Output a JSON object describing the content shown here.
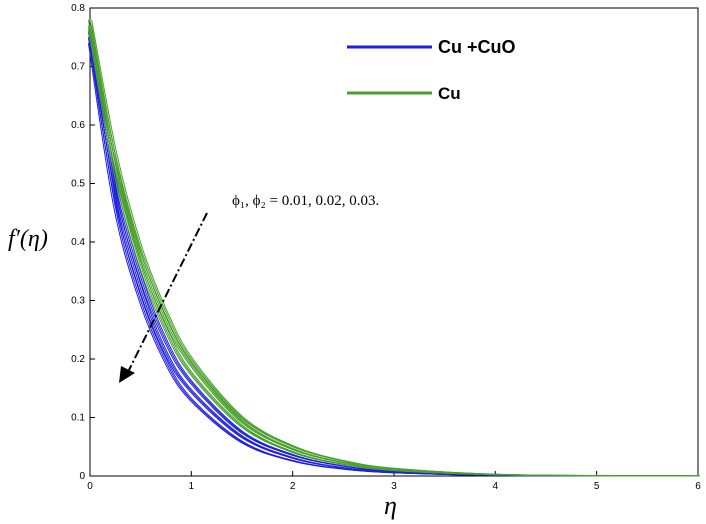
{
  "chart_data": {
    "type": "line",
    "xlabel": "η",
    "ylabel": "f′(η)",
    "xlim": [
      0,
      6
    ],
    "ylim": [
      0,
      0.8
    ],
    "xticks": [
      "0",
      "1",
      "2",
      "3",
      "4",
      "5",
      "6"
    ],
    "yticks": [
      "0",
      "0.1",
      "0.2",
      "0.3",
      "0.4",
      "0.5",
      "0.6",
      "0.7",
      "0.8"
    ],
    "grid": false,
    "legend": {
      "placement": "top-right",
      "entries": [
        {
          "label": "Cu +CuO",
          "color": "#1f1fe0"
        },
        {
          "label": "Cu",
          "color": "#4aa02c"
        }
      ]
    },
    "annotation": {
      "text": "ϕ₁, ϕ₂ = 0.01, 0.02, 0.03.",
      "arrow": "decreasing"
    },
    "x": [
      0,
      0.25,
      0.5,
      0.75,
      1,
      1.5,
      2,
      2.5,
      3,
      4,
      5,
      6
    ],
    "series": [
      {
        "name": "Cu +CuO",
        "params": "0.01",
        "color": "#1f1fe0",
        "values": [
          0.76,
          0.5,
          0.34,
          0.23,
          0.16,
          0.075,
          0.036,
          0.017,
          0.008,
          0.002,
          0.0004,
          0.0001
        ]
      },
      {
        "name": "Cu +CuO",
        "params": "0.02",
        "color": "#1f1fe0",
        "values": [
          0.75,
          0.48,
          0.32,
          0.21,
          0.145,
          0.067,
          0.031,
          0.014,
          0.007,
          0.0015,
          0.0003,
          0.0001
        ]
      },
      {
        "name": "Cu +CuO",
        "params": "0.03",
        "color": "#1f1fe0",
        "values": [
          0.74,
          0.46,
          0.3,
          0.195,
          0.13,
          0.058,
          0.026,
          0.012,
          0.0055,
          0.001,
          0.0002,
          0.0001
        ]
      },
      {
        "name": "Cu",
        "params": "0.01",
        "color": "#4aa02c",
        "values": [
          0.78,
          0.55,
          0.39,
          0.28,
          0.2,
          0.1,
          0.051,
          0.026,
          0.013,
          0.003,
          0.0008,
          0.0002
        ]
      },
      {
        "name": "Cu",
        "params": "0.02",
        "color": "#4aa02c",
        "values": [
          0.77,
          0.535,
          0.375,
          0.265,
          0.19,
          0.093,
          0.046,
          0.023,
          0.011,
          0.0027,
          0.0006,
          0.0002
        ]
      },
      {
        "name": "Cu",
        "params": "0.03",
        "color": "#4aa02c",
        "values": [
          0.765,
          0.52,
          0.36,
          0.25,
          0.175,
          0.085,
          0.041,
          0.02,
          0.0095,
          0.0022,
          0.0005,
          0.0001
        ]
      }
    ]
  }
}
